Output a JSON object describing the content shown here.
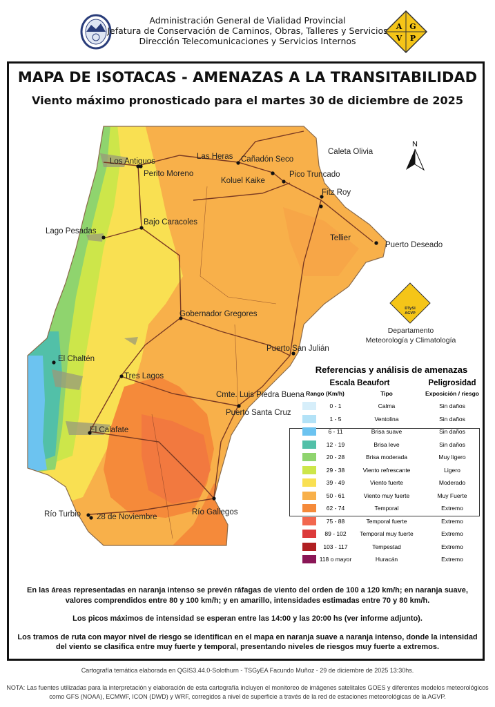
{
  "header": {
    "line1": "Administración General de Vialidad Provincial",
    "line2": "Jefatura de Conservación de Caminos, Obras, Talleres y Servicios",
    "line3": "Dirección Telecomunicaciones y Servicios Internos",
    "logo_right_letters": [
      "A",
      "G",
      "V",
      "P"
    ]
  },
  "title": "MAPA DE ISOTACAS - AMENAZAS A LA TRANSITABILIDAD",
  "subtitle": "Viento máximo pronosticado para el martes 30 de diciembre de 2025",
  "north_label": "N",
  "cities": [
    "Caleta Olivia",
    "Los Antiguos",
    "Perito Moreno",
    "Las Heras",
    "Cañadón Seco",
    "Pico Truncado",
    "Koluel Kaike",
    "Fitz Roy",
    "Lago Pesadas",
    "Bajo Caracoles",
    "Tellier",
    "Puerto Deseado",
    "Gobernador Gregores",
    "Puerto San Julián",
    "El Chaltén",
    "Tres Lagos",
    "Cmte. Luis Piedra Buena",
    "Puerto Santa Cruz",
    "El Calafate",
    "Río Turbio",
    "28 de Noviembre",
    "Río Gallegos"
  ],
  "department": {
    "logo_text": [
      "DTySI",
      "AGVP"
    ],
    "line1": "Departamento",
    "line2": "Meteorología y Climatología"
  },
  "legend": {
    "title": "Referencias y análisis de amenazas",
    "head_scale": "Escala Beaufort",
    "head_danger": "Peligrosidad",
    "col_range": "Rango (Km/h)",
    "col_type": "Tipo",
    "col_risk": "Exposición / riesgo",
    "rows": [
      {
        "range": "0 - 1",
        "type": "Calma",
        "risk": "Sin daños",
        "color": "#d6eefa"
      },
      {
        "range": "1 - 5",
        "type": "Ventolina",
        "risk": "Sin daños",
        "color": "#b3e2f7"
      },
      {
        "range": "6 - 11",
        "type": "Brisa suave",
        "risk": "Sin daños",
        "color": "#6cc3f0"
      },
      {
        "range": "12 - 19",
        "type": "Brisa leve",
        "risk": "Sin daños",
        "color": "#52c0a8"
      },
      {
        "range": "20 - 28",
        "type": "Brisa moderada",
        "risk": "Muy ligero",
        "color": "#8fd46e"
      },
      {
        "range": "29 - 38",
        "type": "Viento refrescante",
        "risk": "Ligero",
        "color": "#cde64a"
      },
      {
        "range": "39 - 49",
        "type": "Viento fuerte",
        "risk": "Moderado",
        "color": "#f9e052"
      },
      {
        "range": "50 - 61",
        "type": "Viento muy fuerte",
        "risk": "Muy Fuerte",
        "color": "#f8b04a"
      },
      {
        "range": "62 - 74",
        "type": "Temporal",
        "risk": "Extremo",
        "color": "#f58a3a"
      },
      {
        "range": "75 - 88",
        "type": "Temporal fuerte",
        "risk": "Extremo",
        "color": "#f2674e"
      },
      {
        "range": "89 - 102",
        "type": "Temporal muy fuerte",
        "risk": "Extremo",
        "color": "#dc3a3a"
      },
      {
        "range": "103 - 117",
        "type": "Tempestad",
        "risk": "Extremo",
        "color": "#b01f22"
      },
      {
        "range": "118 o mayor",
        "type": "Huracán",
        "risk": "Extremo",
        "color": "#8a1656"
      }
    ]
  },
  "notes": [
    "En las áreas representadas en naranja intenso se prevén ráfagas de viento del orden de 100 a 120 km/h; en naranja suave, valores comprendidos entre 80 y 100 km/h; y en amarillo, intensidades estimadas entre 70 y 80 km/h.",
    "Los picos máximos de intensidad se esperan entre las 14:00 y las 20:00 hs (ver informe adjunto).",
    "Los tramos de ruta con mayor nivel de riesgo se identifican en el mapa en naranja suave a naranja intenso, donde la intensidad del viento se clasifica entre muy fuerte y temporal, presentando niveles de riesgos muy fuerte a extremos."
  ],
  "credit": "Cartografía temática elaborada en QGIS3.44.0-Solothurn - TSGyEA Facundo Muñoz - 29 de diciembre de 2025 13:30hs.",
  "nota": "NOTA: Las fuentes utilizadas para la interpretación y elaboración de esta cartografía incluyen el monitoreo de imágenes satelitales GOES y diferentes modelos meteorológicos como GFS (NOAA), ECMWF, ICON (DWD) y WRF, corregidos a nivel de superficie a través de la red de estaciones meteorológicas de la AGVP."
}
